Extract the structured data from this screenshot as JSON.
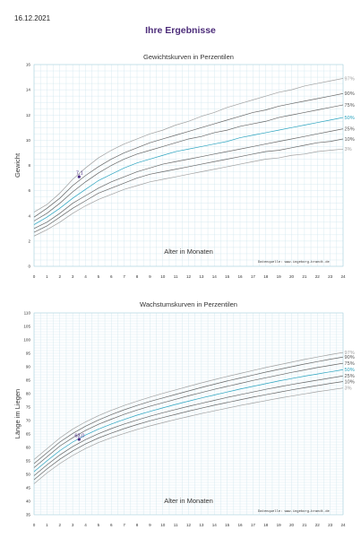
{
  "page": {
    "date": "16.12.2021",
    "title": "Ihre Ergebnisse"
  },
  "colors": {
    "accent_title": "#4d2d7a",
    "grid": "#cfe6ee",
    "gray_curve": "#a0a0a0",
    "dark_curve": "#666666",
    "median_curve": "#2aa3bf",
    "point": "#4a2a86"
  },
  "chart_data": [
    {
      "type": "line",
      "title": "Gewichtskurven in Perzentilen",
      "xlabel": "Alter in Monaten",
      "ylabel": "Gewicht",
      "source": "Datenquelle: www.ingeborg-brandt.de",
      "xlim": [
        0,
        24
      ],
      "ylim": [
        0,
        16
      ],
      "x_ticks": [
        0,
        1,
        2,
        3,
        4,
        5,
        6,
        7,
        8,
        9,
        10,
        11,
        12,
        13,
        14,
        15,
        16,
        17,
        18,
        19,
        20,
        21,
        22,
        23,
        24
      ],
      "y_ticks": [
        0,
        2,
        4,
        6,
        8,
        10,
        12,
        14,
        16
      ],
      "grid": true,
      "x": [
        0,
        1,
        2,
        3,
        4,
        5,
        6,
        7,
        8,
        9,
        10,
        11,
        12,
        13,
        14,
        15,
        16,
        17,
        18,
        19,
        20,
        21,
        22,
        23,
        24
      ],
      "series": [
        {
          "name": "97%",
          "values": [
            4.3,
            4.9,
            5.8,
            6.9,
            7.8,
            8.6,
            9.2,
            9.7,
            10.1,
            10.5,
            10.8,
            11.2,
            11.5,
            11.9,
            12.2,
            12.6,
            12.9,
            13.2,
            13.5,
            13.8,
            14.0,
            14.3,
            14.5,
            14.7,
            14.9
          ]
        },
        {
          "name": "90%",
          "values": [
            3.9,
            4.6,
            5.4,
            6.4,
            7.2,
            7.9,
            8.5,
            9.0,
            9.4,
            9.8,
            10.1,
            10.4,
            10.7,
            11.0,
            11.3,
            11.6,
            11.9,
            12.2,
            12.4,
            12.7,
            12.9,
            13.1,
            13.3,
            13.5,
            13.7
          ]
        },
        {
          "name": "75%",
          "values": [
            3.6,
            4.2,
            5.0,
            5.9,
            6.7,
            7.4,
            8.0,
            8.5,
            8.9,
            9.2,
            9.5,
            9.8,
            10.1,
            10.3,
            10.6,
            10.8,
            11.1,
            11.3,
            11.5,
            11.8,
            12.0,
            12.2,
            12.4,
            12.6,
            12.8
          ]
        },
        {
          "name": "50%",
          "values": [
            3.3,
            3.9,
            4.6,
            5.4,
            6.1,
            6.8,
            7.3,
            7.8,
            8.2,
            8.5,
            8.8,
            9.1,
            9.3,
            9.5,
            9.7,
            9.9,
            10.2,
            10.4,
            10.6,
            10.8,
            11.0,
            11.2,
            11.4,
            11.6,
            11.8
          ]
        },
        {
          "name": "25%",
          "values": [
            3.0,
            3.5,
            4.2,
            5.0,
            5.6,
            6.2,
            6.7,
            7.1,
            7.5,
            7.8,
            8.1,
            8.3,
            8.5,
            8.7,
            8.9,
            9.1,
            9.3,
            9.5,
            9.7,
            9.9,
            10.1,
            10.3,
            10.5,
            10.7,
            10.9
          ]
        },
        {
          "name": "10%",
          "values": [
            2.7,
            3.2,
            3.9,
            4.6,
            5.2,
            5.8,
            6.2,
            6.6,
            7.0,
            7.3,
            7.5,
            7.7,
            7.9,
            8.1,
            8.3,
            8.5,
            8.7,
            8.9,
            9.1,
            9.2,
            9.4,
            9.6,
            9.8,
            9.9,
            10.1
          ]
        },
        {
          "name": "3%",
          "values": [
            2.4,
            2.9,
            3.5,
            4.2,
            4.8,
            5.3,
            5.7,
            6.1,
            6.4,
            6.7,
            6.9,
            7.1,
            7.3,
            7.5,
            7.7,
            7.9,
            8.1,
            8.3,
            8.5,
            8.6,
            8.8,
            8.9,
            9.1,
            9.2,
            9.3
          ]
        }
      ],
      "point": {
        "x": 3.5,
        "y": 7.1,
        "label": "7,1"
      }
    },
    {
      "type": "line",
      "title": "Wachstumskurven in Perzentilen",
      "xlabel": "Alter in Monaten",
      "ylabel": "Länge im Liegen",
      "source": "Datenquelle: www.ingeborg-brandt.de",
      "xlim": [
        0,
        24
      ],
      "ylim": [
        35,
        110
      ],
      "x_ticks": [
        0,
        1,
        2,
        3,
        4,
        5,
        6,
        7,
        8,
        9,
        10,
        11,
        12,
        13,
        14,
        15,
        16,
        17,
        18,
        19,
        20,
        21,
        22,
        23,
        24
      ],
      "y_ticks": [
        35,
        40,
        45,
        50,
        55,
        60,
        65,
        70,
        75,
        80,
        85,
        90,
        95,
        100,
        105,
        110
      ],
      "grid": true,
      "x": [
        0,
        1,
        2,
        3,
        4,
        5,
        6,
        7,
        8,
        9,
        10,
        11,
        12,
        13,
        14,
        15,
        16,
        17,
        18,
        19,
        20,
        21,
        22,
        23,
        24
      ],
      "series": [
        {
          "name": "97%",
          "values": [
            55.5,
            59.5,
            63.5,
            66.8,
            69.5,
            71.8,
            73.8,
            75.6,
            77.2,
            78.7,
            80.1,
            81.4,
            82.7,
            84.0,
            85.2,
            86.4,
            87.5,
            88.6,
            89.7,
            90.7,
            91.7,
            92.7,
            93.6,
            94.5,
            95.3
          ]
        },
        {
          "name": "90%",
          "values": [
            54.0,
            58.0,
            62.0,
            65.2,
            67.9,
            70.2,
            72.2,
            74.0,
            75.6,
            77.1,
            78.4,
            79.7,
            81.0,
            82.3,
            83.5,
            84.7,
            85.8,
            86.9,
            88.0,
            89.0,
            90.0,
            91.0,
            91.9,
            92.8,
            93.6
          ]
        },
        {
          "name": "75%",
          "values": [
            52.5,
            56.5,
            60.5,
            63.6,
            66.3,
            68.6,
            70.5,
            72.3,
            73.9,
            75.3,
            76.6,
            77.9,
            79.2,
            80.4,
            81.6,
            82.7,
            83.8,
            84.9,
            85.9,
            86.9,
            87.9,
            88.8,
            89.7,
            90.5,
            91.3
          ]
        },
        {
          "name": "50%",
          "values": [
            51.0,
            55.0,
            58.8,
            62.0,
            64.6,
            66.8,
            68.7,
            70.4,
            72.0,
            73.4,
            74.7,
            76.0,
            77.2,
            78.4,
            79.5,
            80.6,
            81.7,
            82.7,
            83.7,
            84.7,
            85.6,
            86.5,
            87.3,
            88.1,
            88.9
          ]
        },
        {
          "name": "25%",
          "values": [
            49.5,
            53.5,
            57.2,
            60.3,
            62.9,
            65.1,
            67.0,
            68.7,
            70.2,
            71.6,
            72.9,
            74.1,
            75.3,
            76.4,
            77.5,
            78.6,
            79.6,
            80.6,
            81.6,
            82.5,
            83.4,
            84.2,
            85.0,
            85.8,
            86.6
          ]
        },
        {
          "name": "10%",
          "values": [
            48.0,
            52.0,
            55.6,
            58.7,
            61.3,
            63.5,
            65.3,
            67.0,
            68.5,
            69.9,
            71.1,
            72.3,
            73.5,
            74.6,
            75.7,
            76.7,
            77.7,
            78.7,
            79.6,
            80.5,
            81.4,
            82.2,
            83.0,
            83.8,
            84.5
          ]
        },
        {
          "name": "3%",
          "values": [
            46.5,
            50.5,
            54.0,
            57.0,
            59.6,
            61.8,
            63.6,
            65.2,
            66.7,
            68.0,
            69.2,
            70.4,
            71.5,
            72.6,
            73.6,
            74.6,
            75.6,
            76.5,
            77.4,
            78.3,
            79.1,
            79.9,
            80.7,
            81.4,
            82.1
          ]
        }
      ],
      "point": {
        "x": 3.5,
        "y": 63.0,
        "label": "63,0"
      }
    }
  ]
}
